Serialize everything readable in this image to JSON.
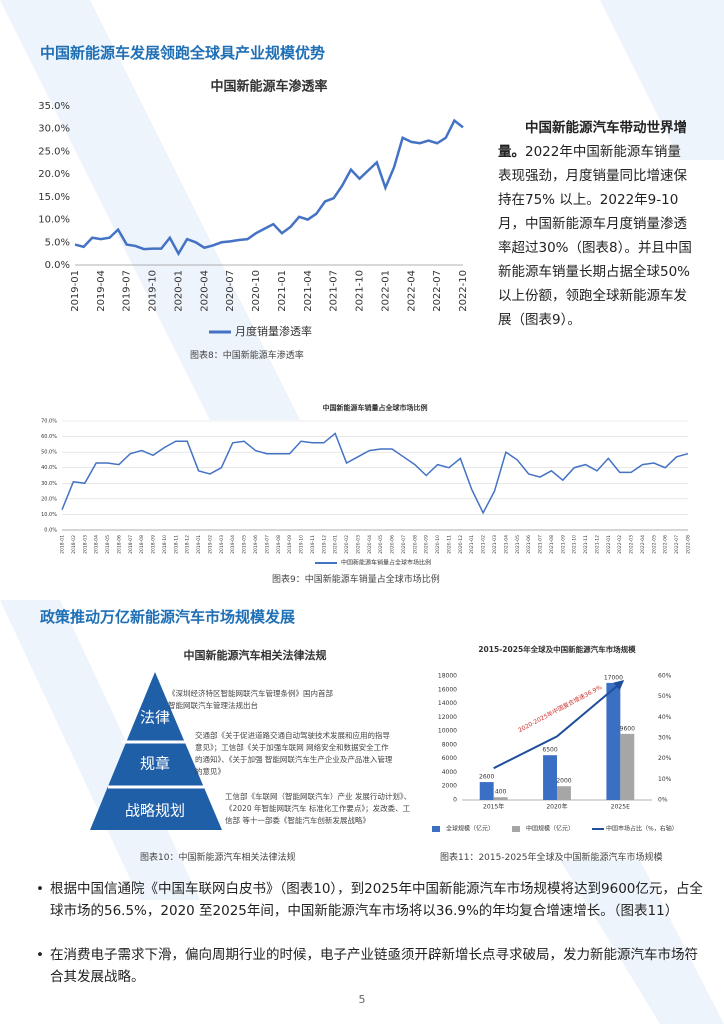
{
  "headings": [
    "中国新能源车发展领跑全球具产业规模优势",
    "政策推动万亿新能源汽车市场规模发展"
  ],
  "side_text": {
    "lead": "中国新能源汽车带动世界增量。",
    "body": "2022年中国新能源车销量表现强劲，月度销量同比增速保持在75% 以上。2022年9-10月，中国新能源车月度销量渗透率超过30%（图表8）。并且中国新能源车销量长期占据全球50%以上份额，领跑全球新能源车发展（图表9）。"
  },
  "captions": [
    "图表8：中国新能源车渗透率",
    "图表9：中国新能源车销量占全球市场比例",
    "图表10：中国新能源汽车相关法律法规",
    "图表11：2015-2025年全球及中国新能源汽车市场规模"
  ],
  "law_diagram": {
    "title": "中国新能源汽车相关法律法规",
    "levels": [
      {
        "label": "法律",
        "text": "《深圳经济特区智能网联汽车管理条例》国内首部智能网联汽车管理法规出台"
      },
      {
        "label": "规章",
        "text": "交通部《关于促进道路交通自动驾驶技术发展和应用的指导意见》；工信部《关于加强车联网 网络安全和数据安全工作的通知》、《关于加强 智能网联汽车生产企业及产品准入管理的意见》"
      },
      {
        "label": "战略规划",
        "text": "工信部《车联网（智能网联汽车）产业 发展行动计划》、《2020 年智能网联汽车 标准化工作要点》；发改委、工信部 等十一部委《智能汽车创新发展战略》"
      }
    ]
  },
  "bullets": [
    "根据中国信通院《中国车联网白皮书》（图表10），到2025年中国新能源汽车市场规模将达到9600亿元，占全球市场的56.5%，2020 至2025年间，中国新能源汽车市场将以36.9%的年均复合增速增长。（图表11）",
    "在消费电子需求下滑，偏向周期行业的时候，电子产业链亟须开辟新增长点寻求破局，发力新能源汽车市场符合其发展战略。"
  ],
  "page_number": "5",
  "chart_data": [
    {
      "type": "line",
      "title": "中国新能源车渗透率",
      "categories": [
        "2019-01",
        null,
        null,
        "2019-04",
        null,
        null,
        "2019-07",
        null,
        null,
        "2019-10",
        null,
        null,
        "2020-01",
        null,
        null,
        "2020-04",
        null,
        null,
        "2020-07",
        null,
        null,
        "2020-10",
        null,
        null,
        "2021-01",
        null,
        null,
        "2021-04",
        null,
        null,
        "2021-07",
        null,
        null,
        "2021-10",
        null,
        null,
        "2022-01",
        null,
        null,
        "2022-04",
        null,
        null,
        "2022-07",
        null,
        null,
        "2022-10"
      ],
      "series": [
        {
          "name": "月度销量渗透率",
          "color": "#4472c4",
          "values": [
            4.5,
            4.0,
            6.0,
            5.7,
            6.0,
            7.8,
            4.5,
            4.2,
            3.5,
            3.6,
            3.6,
            6.0,
            2.5,
            5.7,
            5.0,
            3.8,
            4.3,
            5.0,
            5.2,
            5.5,
            5.7,
            7.0,
            8.0,
            9.0,
            7.0,
            8.4,
            10.6,
            10.0,
            11.3,
            14.0,
            14.7,
            17.5,
            21.0,
            19.0,
            20.8,
            22.6,
            17.0,
            21.5,
            28.0,
            27.1,
            26.8,
            27.4,
            26.8,
            28.0,
            31.8,
            30.3
          ]
        }
      ],
      "ylim": [
        0,
        35
      ],
      "yticks": [
        {
          "value": 0,
          "label": "0.0%"
        },
        {
          "value": 5,
          "label": "5.0%"
        },
        {
          "value": 10,
          "label": "10.0%"
        },
        {
          "value": 15,
          "label": "15.0%"
        },
        {
          "value": 20,
          "label": "20.0%"
        },
        {
          "value": 25,
          "label": "25.0%"
        },
        {
          "value": 30,
          "label": "30.0%"
        },
        {
          "value": 35,
          "label": "35.0%"
        }
      ],
      "grid": false,
      "legend": "bottom"
    },
    {
      "type": "line",
      "title": "中国新能源车销量占全球市场比例",
      "categories": [
        "2018-01",
        "2018-02",
        "2018-03",
        "2018-04",
        "2018-05",
        "2018-06",
        "2018-07",
        "2018-08",
        "2018-09",
        "2018-10",
        "2018-11",
        "2018-12",
        "2019-01",
        "2019-02",
        "2019-03",
        "2019-04",
        "2019-05",
        "2019-06",
        "2019-07",
        "2019-08",
        "2019-09",
        "2019-10",
        "2019-11",
        "2019-12",
        "2020-01",
        "2020-02",
        "2020-03",
        "2020-04",
        "2020-05",
        "2020-06",
        "2020-07",
        "2020-08",
        "2020-09",
        "2020-10",
        "2020-11",
        "2020-12",
        "2021-01",
        "2021-02",
        "2021-03",
        "2021-04",
        "2021-05",
        "2021-06",
        "2021-07",
        "2021-08",
        "2021-09",
        "2021-10",
        "2021-11",
        "2021-12",
        "2022-01",
        "2022-02",
        "2022-03",
        "2022-04",
        "2022-05",
        "2022-06",
        "2022-07",
        "2022-08"
      ],
      "series": [
        {
          "name": "中国新能源车销量占全球市场比例",
          "color": "#4472c4",
          "values": [
            13,
            31,
            30,
            43,
            43,
            42,
            49,
            51,
            48,
            53,
            57,
            57,
            38,
            36,
            40,
            56,
            57,
            51,
            49,
            49,
            49,
            57,
            56,
            56,
            62,
            43,
            47,
            51,
            52,
            52,
            47,
            42,
            35,
            42,
            40,
            46,
            26,
            11,
            25,
            50,
            45,
            36,
            34,
            38,
            32,
            40,
            42,
            38,
            46,
            37,
            37,
            42,
            43,
            40,
            47,
            49
          ]
        }
      ],
      "ylim": [
        0,
        70
      ],
      "yticks": [
        {
          "value": 0,
          "label": "0.0%"
        },
        {
          "value": 10,
          "label": "10.0%"
        },
        {
          "value": 20,
          "label": "20.0%"
        },
        {
          "value": 30,
          "label": "30.0%"
        },
        {
          "value": 40,
          "label": "40.0%"
        },
        {
          "value": 50,
          "label": "50.0%"
        },
        {
          "value": 60,
          "label": "60.0%"
        },
        {
          "value": 70,
          "label": "70.0%"
        }
      ],
      "grid": true,
      "legend": "bottom"
    },
    {
      "type": "bar",
      "title": "2015-2025年全球及中国新能源汽车市场规模",
      "categories": [
        "2015年",
        "2020年",
        "2025E"
      ],
      "series": [
        {
          "name": "全球规模（亿元）",
          "color": "#3b6fc4",
          "values": [
            2600,
            6500,
            17000
          ]
        },
        {
          "name": "中国规模（亿元）",
          "color": "#a6a6a6",
          "values": [
            400,
            2000,
            9600
          ]
        },
        {
          "name": "中国市场占比（%，右轴）",
          "color": "#1f4e9c",
          "type": "line",
          "axis": "y2",
          "values": [
            15.4,
            30.8,
            56.5
          ]
        }
      ],
      "ylim": [
        0,
        18000
      ],
      "yticks": [
        0,
        2000,
        4000,
        6000,
        8000,
        10000,
        12000,
        14000,
        16000,
        18000
      ],
      "y2lim": [
        0,
        60
      ],
      "y2ticks": [
        {
          "value": 0,
          "label": "0%"
        },
        {
          "value": 10,
          "label": "10%"
        },
        {
          "value": 20,
          "label": "20%"
        },
        {
          "value": 30,
          "label": "30%"
        },
        {
          "value": 40,
          "label": "40%"
        },
        {
          "value": 50,
          "label": "50%"
        },
        {
          "value": 60,
          "label": "60%"
        }
      ],
      "annotation": "2020-2025年中国复合增速36.9%",
      "grid": false,
      "legend": "bottom"
    }
  ]
}
